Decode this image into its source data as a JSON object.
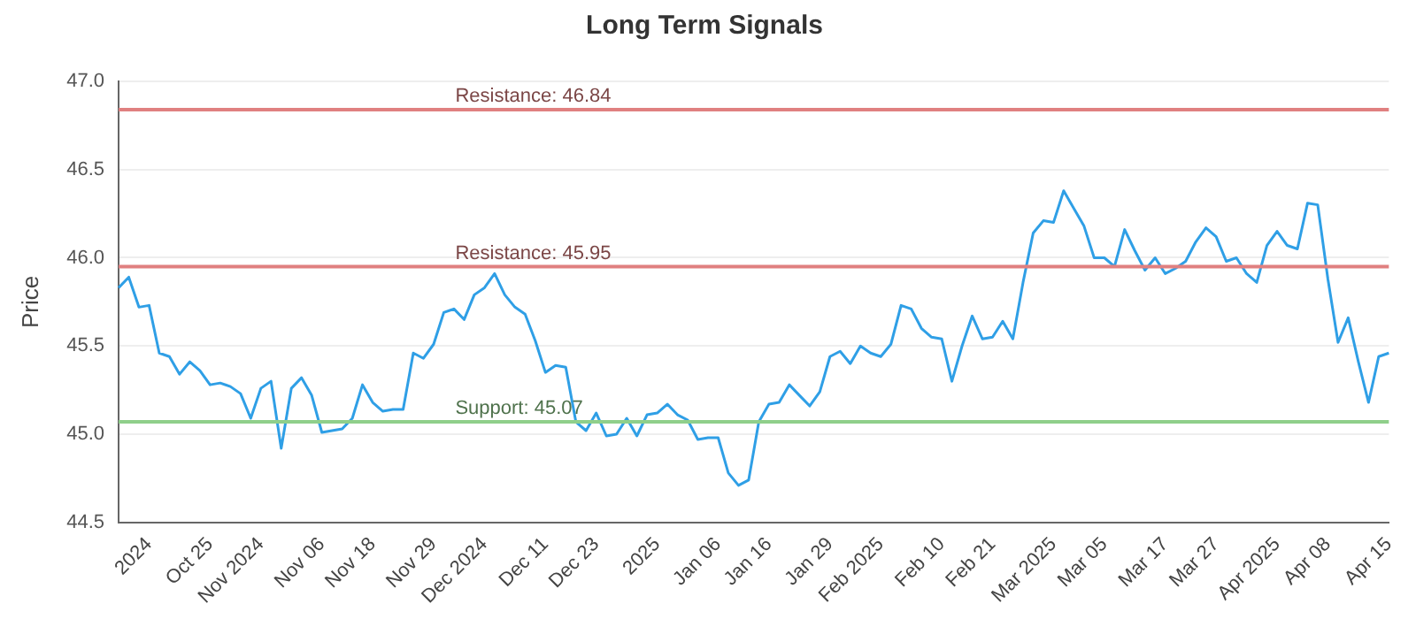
{
  "chart_data": {
    "type": "line",
    "title": "Long Term Signals",
    "ylabel": "Price",
    "categories": [
      null,
      null,
      null,
      "2024",
      null,
      null,
      null,
      null,
      null,
      "Oct 25",
      null,
      null,
      null,
      null,
      "Nov 2024",
      null,
      null,
      null,
      null,
      null,
      "Nov 06",
      null,
      null,
      null,
      null,
      "Nov 18",
      null,
      null,
      null,
      null,
      null,
      "Nov 29",
      null,
      null,
      null,
      null,
      "Dec 2024",
      null,
      null,
      null,
      null,
      null,
      "Dec 11",
      null,
      null,
      null,
      null,
      "Dec 23",
      null,
      null,
      null,
      null,
      null,
      "2025",
      null,
      null,
      null,
      null,
      null,
      "Jan 06",
      null,
      null,
      null,
      null,
      "Jan 16",
      null,
      null,
      null,
      null,
      null,
      "Jan 29",
      null,
      null,
      null,
      null,
      "Feb 2025",
      null,
      null,
      null,
      null,
      null,
      "Feb 10",
      null,
      null,
      null,
      null,
      "Feb 21",
      null,
      null,
      null,
      null,
      null,
      "Mar 2025",
      null,
      null,
      null,
      null,
      "Mar 05",
      null,
      null,
      null,
      null,
      null,
      "Mar 17",
      null,
      null,
      null,
      null,
      "Mar 27",
      null,
      null,
      null,
      null,
      null,
      "Apr 2025",
      null,
      null,
      null,
      null,
      "Apr 08",
      null,
      null,
      null,
      null,
      null,
      "Apr 15"
    ],
    "series": [
      {
        "color": "#2f9fe6",
        "values": [
          45.83,
          45.89,
          45.72,
          45.73,
          45.46,
          45.44,
          45.34,
          45.41,
          45.36,
          45.28,
          45.29,
          45.27,
          45.23,
          45.09,
          45.26,
          45.3,
          44.92,
          45.26,
          45.32,
          45.22,
          45.01,
          45.02,
          45.03,
          45.09,
          45.28,
          45.18,
          45.13,
          45.14,
          45.14,
          45.46,
          45.43,
          45.51,
          45.69,
          45.71,
          45.65,
          45.79,
          45.83,
          45.91,
          45.79,
          45.72,
          45.68,
          45.53,
          45.35,
          45.39,
          45.38,
          45.07,
          45.02,
          45.12,
          44.99,
          45.0,
          45.09,
          44.99,
          45.11,
          45.12,
          45.17,
          45.11,
          45.08,
          44.97,
          44.98,
          44.98,
          44.78,
          44.71,
          44.74,
          45.07,
          45.17,
          45.18,
          45.28,
          45.22,
          45.16,
          45.24,
          45.44,
          45.47,
          45.4,
          45.5,
          45.46,
          45.44,
          45.51,
          45.73,
          45.71,
          45.6,
          45.55,
          45.54,
          45.3,
          45.5,
          45.67,
          45.54,
          45.55,
          45.64,
          45.54,
          45.86,
          46.14,
          46.21,
          46.2,
          46.38,
          46.28,
          46.18,
          46.0,
          46.0,
          45.95,
          46.16,
          46.04,
          45.93,
          46.0,
          45.91,
          45.94,
          45.98,
          46.09,
          46.17,
          46.12,
          45.98,
          46.0,
          45.91,
          45.86,
          46.07,
          46.15,
          46.07,
          46.05,
          46.31,
          46.3,
          45.88,
          45.52,
          45.66,
          45.41,
          45.18,
          45.44,
          45.46
        ]
      }
    ],
    "ylim": [
      44.5,
      47.0
    ],
    "yticks": [
      {
        "value": 44.5,
        "label": "44.5"
      },
      {
        "value": 45,
        "label": "45.0"
      },
      {
        "value": 45.5,
        "label": "45.5"
      },
      {
        "value": 46,
        "label": "46.0"
      },
      {
        "value": 46.5,
        "label": "46.5"
      },
      {
        "value": 47,
        "label": "47.0"
      }
    ],
    "ref_lines": [
      {
        "axis": "y",
        "value": 46.84,
        "label": "Resistance: 46.84",
        "color": "#e08080"
      },
      {
        "axis": "y",
        "value": 45.95,
        "label": "Resistance: 45.95",
        "color": "#e08080"
      },
      {
        "axis": "y",
        "value": 45.07,
        "label": "Support: 45.07",
        "color": "#8fcf8a"
      }
    ],
    "grid": "y",
    "legend": false,
    "marker": "none",
    "line_style": "solid"
  }
}
